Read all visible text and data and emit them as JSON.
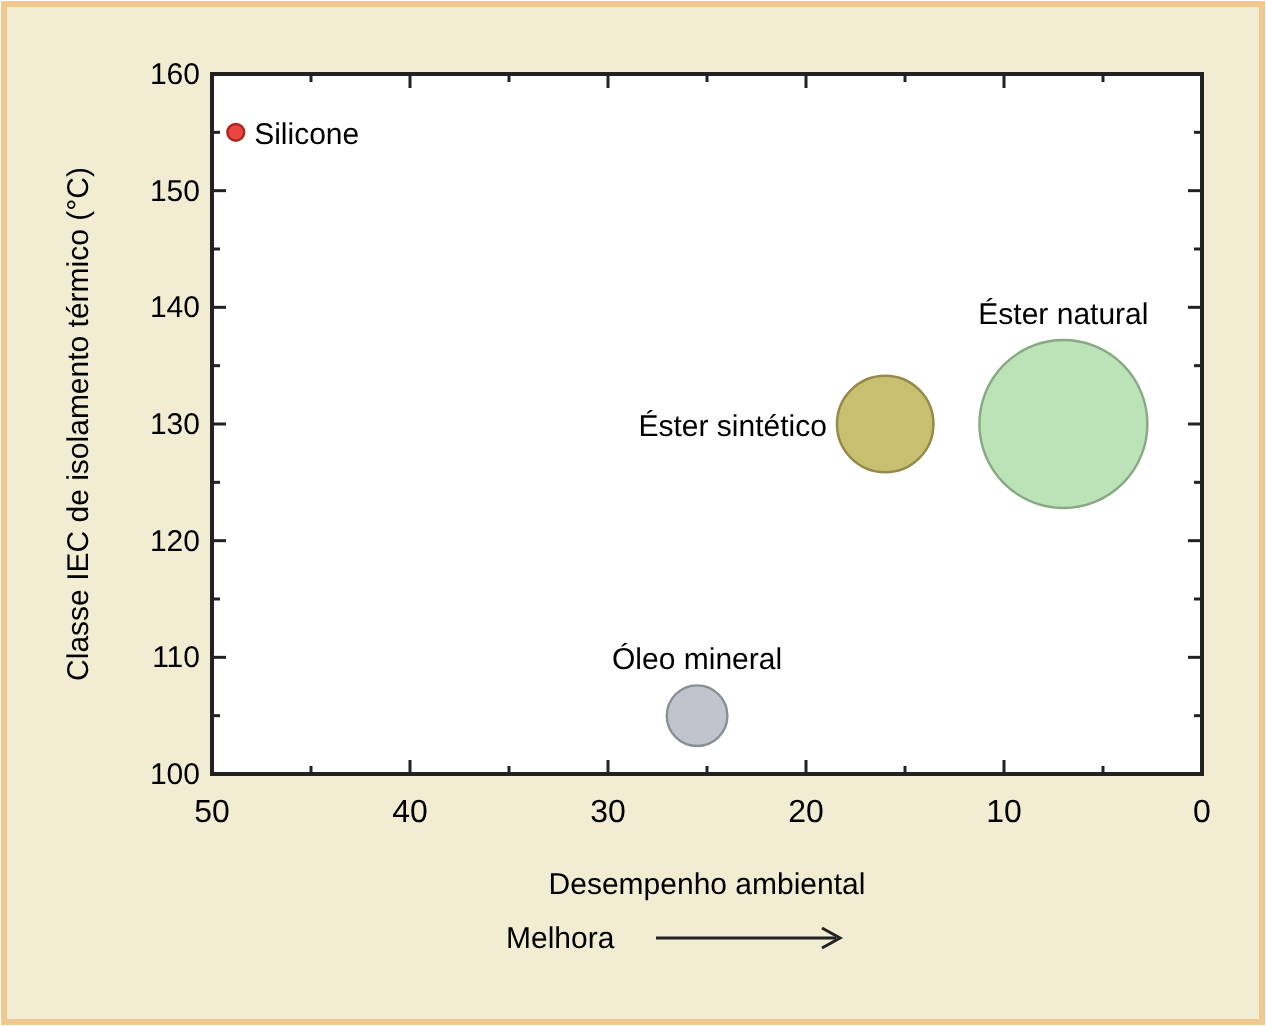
{
  "chart_data": {
    "type": "bubble",
    "xlabel": "Desempenho ambiental",
    "ylabel": "Classe IEC de isolamento térmico (°C)",
    "annotations": [
      "Melhora"
    ],
    "xlim": [
      50,
      0
    ],
    "xticks": [
      50,
      {
        "value": 45,
        "label": null
      },
      40,
      {
        "value": 35,
        "label": null
      },
      30,
      {
        "value": 25,
        "label": null
      },
      20,
      {
        "value": 15,
        "label": null
      },
      10,
      {
        "value": 5,
        "label": null
      },
      0
    ],
    "ylim": [
      100,
      160
    ],
    "yticks": [
      100,
      {
        "value": 105,
        "label": null
      },
      110,
      {
        "value": 115,
        "label": null
      },
      120,
      {
        "value": 125,
        "label": null
      },
      130,
      {
        "value": 135,
        "label": null
      },
      140,
      {
        "value": 145,
        "label": null
      },
      150,
      {
        "value": 155,
        "label": null
      },
      160
    ],
    "grid": false,
    "series": [
      {
        "name": "Silicone",
        "color": "#e8312a",
        "x": [
          48.8
        ],
        "values": [
          155
        ],
        "sizes": [
          0.01
        ]
      },
      {
        "name": "Óleo mineral",
        "color": "#b8bec8",
        "x": [
          25.5
        ],
        "values": [
          105
        ],
        "sizes": [
          0.13
        ]
      },
      {
        "name": "Éster sintético",
        "color": "#c2b860",
        "x": [
          16
        ],
        "values": [
          130
        ],
        "sizes": [
          0.33
        ]
      },
      {
        "name": "Éster natural",
        "color": "#b5dfb0",
        "x": [
          7
        ],
        "values": [
          130
        ],
        "sizes": [
          1
        ]
      }
    ]
  }
}
